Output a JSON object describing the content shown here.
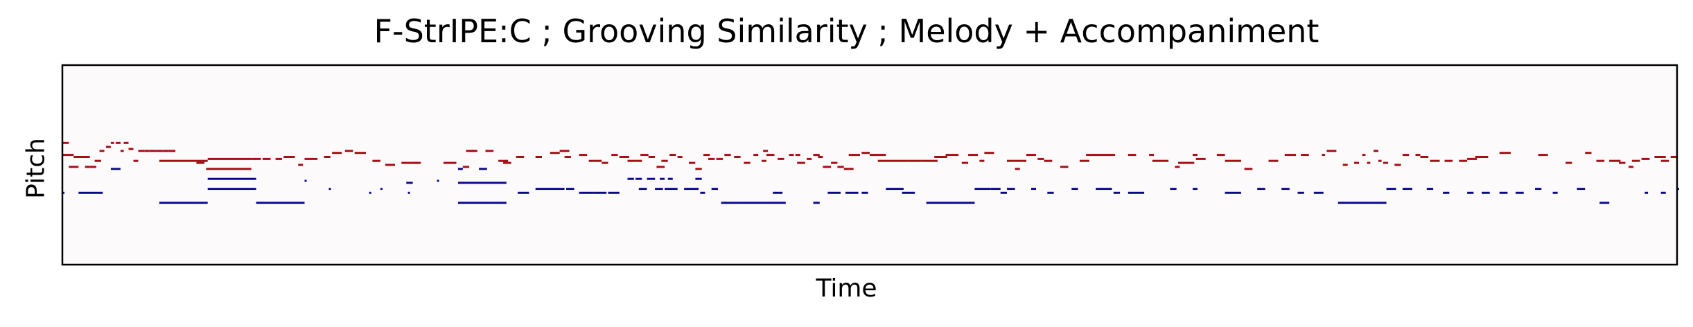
{
  "chart_data": {
    "type": "piano-roll",
    "title": "F-StrIPE:C ; Grooving Similarity ; Melody + Accompaniment",
    "xlabel": "Time",
    "ylabel": "Pitch",
    "xlim": [
      0,
      1000
    ],
    "ylim": [
      0,
      100
    ],
    "grid": false,
    "x_ticks_shown": false,
    "y_ticks_shown": false,
    "colors": {
      "background": "#fdfafc",
      "melody": "#a50f15",
      "accompaniment": "#0b0b8a",
      "frame": "#000000"
    },
    "series": [
      {
        "role": "melody",
        "notes": [
          [
            0,
            4,
            61
          ],
          [
            0,
            7,
            55
          ],
          [
            4,
            6,
            49
          ],
          [
            7,
            5,
            54
          ],
          [
            10,
            7,
            54
          ],
          [
            14,
            3,
            49
          ],
          [
            17,
            4,
            49
          ],
          [
            20,
            4,
            52
          ],
          [
            23,
            3,
            57
          ],
          [
            27,
            3,
            59
          ],
          [
            30,
            2,
            61
          ],
          [
            33,
            3,
            61
          ],
          [
            36,
            2,
            57
          ],
          [
            38,
            3,
            61
          ],
          [
            41,
            3,
            58
          ],
          [
            44,
            3,
            52
          ],
          [
            47,
            4,
            57
          ],
          [
            51,
            3,
            57
          ],
          [
            54,
            4,
            57
          ],
          [
            58,
            4,
            57
          ],
          [
            62,
            4,
            57
          ],
          [
            66,
            4,
            57
          ],
          [
            60,
            30,
            52
          ],
          [
            83,
            5,
            51
          ],
          [
            90,
            28,
            53
          ],
          [
            89,
            28,
            48
          ],
          [
            118,
            5,
            53
          ],
          [
            124,
            5,
            53
          ],
          [
            132,
            4,
            53
          ],
          [
            137,
            7,
            54
          ],
          [
            146,
            3,
            50
          ],
          [
            150,
            8,
            53
          ],
          [
            162,
            4,
            54
          ],
          [
            167,
            6,
            56
          ],
          [
            175,
            5,
            57
          ],
          [
            181,
            7,
            56
          ],
          [
            192,
            5,
            52
          ],
          [
            200,
            6,
            50
          ],
          [
            210,
            10,
            51
          ],
          [
            218,
            4,
            51
          ],
          [
            236,
            8,
            51
          ],
          [
            248,
            4,
            49
          ],
          [
            250,
            5,
            57
          ],
          [
            253,
            4,
            57
          ],
          [
            262,
            5,
            57
          ],
          [
            270,
            6,
            52
          ],
          [
            273,
            5,
            51
          ],
          [
            281,
            5,
            54
          ],
          [
            293,
            4,
            54
          ],
          [
            302,
            6,
            56
          ],
          [
            308,
            6,
            57
          ],
          [
            311,
            4,
            54
          ],
          [
            320,
            5,
            55
          ],
          [
            326,
            8,
            52
          ],
          [
            334,
            4,
            51
          ],
          [
            340,
            4,
            55
          ],
          [
            345,
            6,
            54
          ],
          [
            350,
            5,
            52
          ],
          [
            355,
            4,
            52
          ],
          [
            358,
            5,
            55
          ],
          [
            363,
            4,
            54
          ],
          [
            368,
            5,
            49
          ],
          [
            371,
            4,
            52
          ],
          [
            376,
            4,
            55
          ],
          [
            381,
            3,
            54
          ],
          [
            388,
            4,
            51
          ],
          [
            392,
            4,
            48
          ],
          [
            397,
            4,
            55
          ],
          [
            400,
            4,
            53
          ],
          [
            405,
            4,
            53
          ],
          [
            410,
            4,
            55
          ],
          [
            416,
            4,
            54
          ],
          [
            422,
            4,
            51
          ],
          [
            428,
            3,
            55
          ],
          [
            434,
            3,
            57
          ],
          [
            433,
            3,
            52
          ],
          [
            436,
            5,
            55
          ],
          [
            443,
            4,
            53
          ],
          [
            450,
            3,
            55
          ],
          [
            454,
            3,
            55
          ],
          [
            461,
            3,
            53
          ],
          [
            465,
            4,
            55
          ],
          [
            471,
            5,
            49
          ],
          [
            476,
            4,
            51
          ],
          [
            480,
            4,
            49
          ],
          [
            484,
            6,
            48
          ],
          [
            455,
            5,
            51
          ],
          [
            468,
            3,
            54
          ],
          [
            487,
            7,
            55
          ],
          [
            495,
            5,
            56
          ],
          [
            500,
            10,
            55
          ],
          [
            505,
            12,
            52
          ],
          [
            517,
            7,
            52
          ],
          [
            524,
            8,
            52
          ],
          [
            532,
            10,
            52
          ],
          [
            540,
            8,
            54
          ],
          [
            547,
            8,
            55
          ],
          [
            557,
            4,
            51
          ],
          [
            561,
            6,
            55
          ],
          [
            568,
            3,
            52
          ],
          [
            571,
            6,
            56
          ],
          [
            585,
            12,
            52
          ],
          [
            597,
            6,
            55
          ],
          [
            590,
            3,
            48
          ],
          [
            604,
            4,
            53
          ],
          [
            608,
            5,
            52
          ],
          [
            618,
            5,
            49
          ],
          [
            630,
            6,
            52
          ],
          [
            634,
            10,
            55
          ],
          [
            644,
            8,
            55
          ],
          [
            660,
            5,
            55
          ],
          [
            673,
            3,
            55
          ],
          [
            675,
            10,
            52
          ],
          [
            689,
            3,
            49
          ],
          [
            691,
            10,
            51
          ],
          [
            702,
            6,
            53
          ],
          [
            700,
            3,
            55
          ],
          [
            715,
            5,
            55
          ],
          [
            720,
            10,
            52
          ],
          [
            732,
            5,
            48
          ],
          [
            747,
            6,
            52
          ],
          [
            757,
            7,
            55
          ],
          [
            767,
            5,
            55
          ],
          [
            780,
            2,
            55
          ],
          [
            783,
            6,
            57
          ],
          [
            793,
            3,
            50
          ],
          [
            800,
            3,
            51
          ],
          [
            805,
            2,
            55
          ],
          [
            808,
            2,
            51
          ],
          [
            812,
            3,
            57
          ],
          [
            815,
            2,
            52
          ],
          [
            818,
            3,
            51
          ],
          [
            825,
            4,
            50
          ],
          [
            830,
            4,
            55
          ],
          [
            838,
            3,
            55
          ],
          [
            841,
            5,
            54
          ],
          [
            847,
            6,
            52
          ],
          [
            856,
            5,
            52
          ],
          [
            865,
            5,
            52
          ],
          [
            870,
            6,
            53
          ],
          [
            875,
            8,
            54
          ],
          [
            890,
            7,
            56
          ],
          [
            914,
            6,
            55
          ],
          [
            931,
            4,
            51
          ],
          [
            943,
            4,
            56
          ],
          [
            950,
            5,
            52
          ],
          [
            958,
            7,
            52
          ],
          [
            964,
            4,
            51
          ],
          [
            970,
            3,
            49
          ],
          [
            972,
            5,
            52
          ],
          [
            978,
            5,
            53
          ],
          [
            986,
            7,
            54
          ],
          [
            990,
            5,
            52
          ],
          [
            996,
            4,
            54
          ]
        ]
      },
      {
        "role": "accompaniment",
        "notes": [
          [
            0,
            1,
            36
          ],
          [
            10,
            15,
            36
          ],
          [
            30,
            6,
            48
          ],
          [
            60,
            30,
            31
          ],
          [
            90,
            30,
            38
          ],
          [
            90,
            30,
            43
          ],
          [
            120,
            30,
            31
          ],
          [
            150,
            1,
            42
          ],
          [
            165,
            1,
            38
          ],
          [
            190,
            1,
            36
          ],
          [
            197,
            1,
            38
          ],
          [
            213,
            4,
            41
          ],
          [
            214,
            1,
            36
          ],
          [
            232,
            1,
            42
          ],
          [
            245,
            3,
            48
          ],
          [
            245,
            30,
            31
          ],
          [
            245,
            30,
            41
          ],
          [
            258,
            5,
            48
          ],
          [
            282,
            7,
            36
          ],
          [
            293,
            10,
            38
          ],
          [
            303,
            8,
            38
          ],
          [
            312,
            5,
            38
          ],
          [
            320,
            9,
            36
          ],
          [
            329,
            8,
            36
          ],
          [
            338,
            7,
            36
          ],
          [
            350,
            4,
            43
          ],
          [
            355,
            4,
            43
          ],
          [
            357,
            5,
            38
          ],
          [
            362,
            5,
            43
          ],
          [
            367,
            5,
            38
          ],
          [
            370,
            3,
            43
          ],
          [
            373,
            8,
            38
          ],
          [
            375,
            3,
            43
          ],
          [
            385,
            9,
            38
          ],
          [
            392,
            4,
            43
          ],
          [
            395,
            3,
            36
          ],
          [
            402,
            4,
            38
          ],
          [
            408,
            40,
            31
          ],
          [
            440,
            6,
            36
          ],
          [
            465,
            4,
            31
          ],
          [
            474,
            8,
            36
          ],
          [
            485,
            8,
            36
          ],
          [
            495,
            4,
            36
          ],
          [
            510,
            11,
            38
          ],
          [
            520,
            8,
            36
          ],
          [
            535,
            30,
            31
          ],
          [
            565,
            10,
            38
          ],
          [
            575,
            6,
            38
          ],
          [
            581,
            4,
            36
          ],
          [
            585,
            5,
            38
          ],
          [
            600,
            3,
            38
          ],
          [
            610,
            4,
            36
          ],
          [
            625,
            4,
            38
          ],
          [
            640,
            10,
            38
          ],
          [
            651,
            4,
            36
          ],
          [
            660,
            10,
            36
          ],
          [
            686,
            4,
            38
          ],
          [
            700,
            3,
            38
          ],
          [
            720,
            10,
            36
          ],
          [
            740,
            5,
            38
          ],
          [
            755,
            5,
            38
          ],
          [
            765,
            4,
            36
          ],
          [
            775,
            6,
            36
          ],
          [
            790,
            30,
            31
          ],
          [
            820,
            6,
            38
          ],
          [
            830,
            6,
            38
          ],
          [
            845,
            4,
            38
          ],
          [
            855,
            4,
            36
          ],
          [
            870,
            4,
            36
          ],
          [
            879,
            5,
            36
          ],
          [
            890,
            5,
            36
          ],
          [
            900,
            5,
            36
          ],
          [
            912,
            4,
            38
          ],
          [
            923,
            3,
            36
          ],
          [
            938,
            5,
            38
          ],
          [
            952,
            6,
            31
          ],
          [
            980,
            2,
            36
          ],
          [
            990,
            3,
            36
          ],
          [
            1000,
            4,
            38
          ]
        ]
      }
    ]
  }
}
